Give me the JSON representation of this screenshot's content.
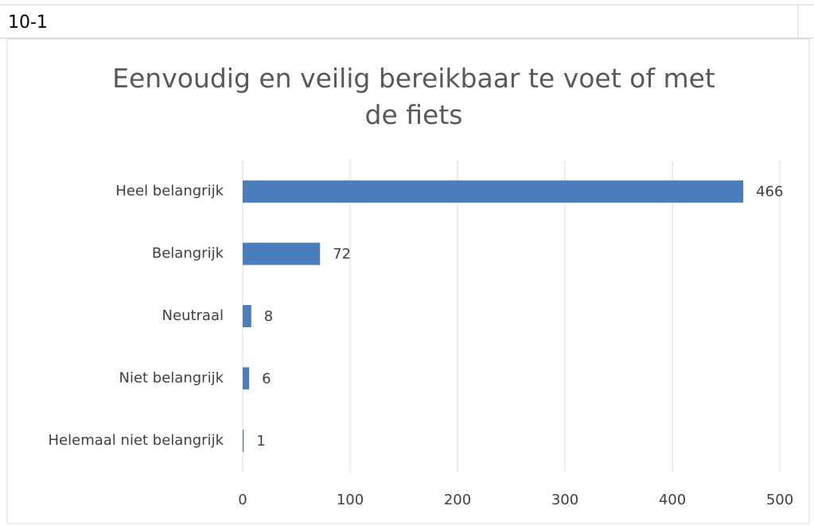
{
  "cell_label": "10-1",
  "chart_data": {
    "type": "bar",
    "orientation": "horizontal",
    "title": "Eenvoudig en veilig bereikbaar te voet of met de fiets",
    "categories": [
      "Heel belangrijk",
      "Belangrijk",
      "Neutraal",
      "Niet belangrijk",
      "Helemaal niet belangrijk"
    ],
    "values": [
      466,
      72,
      8,
      6,
      1
    ],
    "color": "#4a7ebb",
    "xlim": [
      0,
      500
    ],
    "xticks": [
      0,
      100,
      200,
      300,
      400,
      500
    ],
    "grid": true
  }
}
